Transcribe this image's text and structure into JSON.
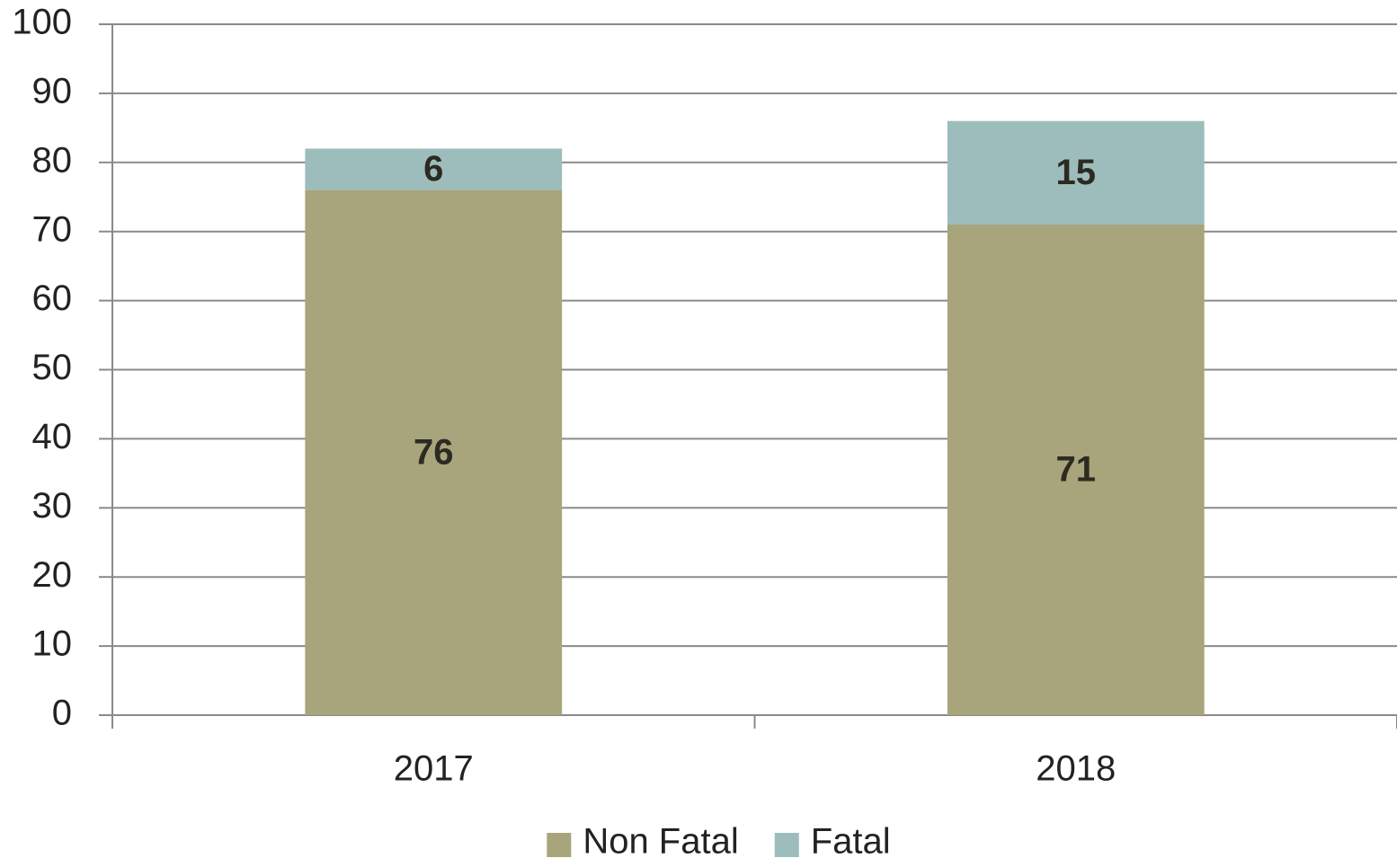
{
  "chart_data": {
    "type": "bar",
    "stacked": true,
    "categories": [
      "2017",
      "2018"
    ],
    "series": [
      {
        "name": "Non Fatal",
        "color": "#a8a47b",
        "values": [
          76,
          71
        ]
      },
      {
        "name": "Fatal",
        "color": "#9dbdbc",
        "values": [
          6,
          15
        ]
      }
    ],
    "ylim": [
      0,
      100
    ],
    "yticks": [
      0,
      10,
      20,
      30,
      40,
      50,
      60,
      70,
      80,
      90,
      100
    ],
    "grid": true,
    "legend": "bottom"
  }
}
